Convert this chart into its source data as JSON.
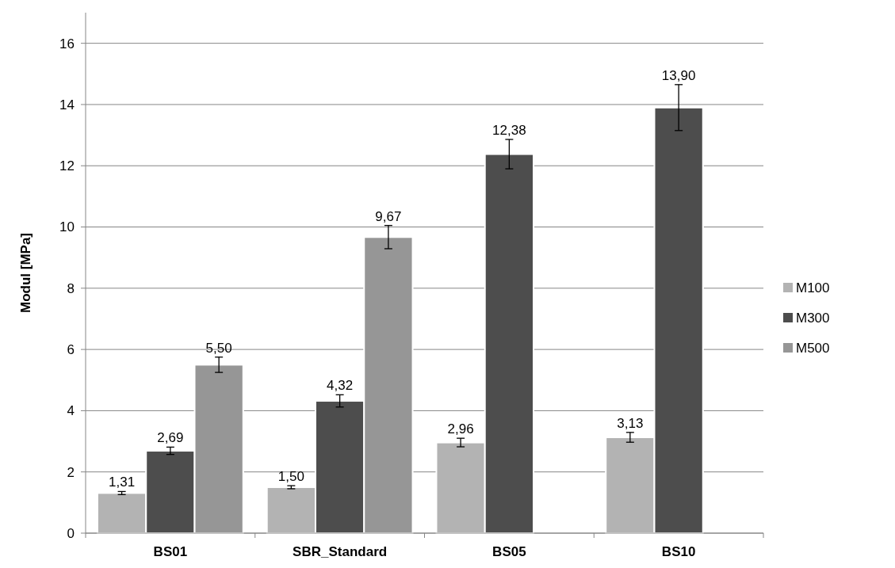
{
  "chart_data": {
    "type": "bar",
    "ylabel": "Modul [MPa]",
    "categories": [
      "BS01",
      "SBR_Standard",
      "BS05",
      "BS10"
    ],
    "series": [
      {
        "name": "M100",
        "color": "#b3b3b3",
        "values": [
          1.31,
          1.5,
          2.96,
          3.13
        ],
        "errors": [
          0.05,
          0.05,
          0.14,
          0.16
        ],
        "value_labels": [
          "1,31",
          "1,50",
          "2,96",
          "3,13"
        ]
      },
      {
        "name": "M300",
        "color": "#4d4d4d",
        "values": [
          2.69,
          4.32,
          12.38,
          13.9
        ],
        "errors": [
          0.12,
          0.2,
          0.48,
          0.75
        ],
        "value_labels": [
          "2,69",
          "4,32",
          "12,38",
          "13,90"
        ]
      },
      {
        "name": "M500",
        "color": "#969696",
        "values": [
          5.5,
          9.67,
          null,
          null
        ],
        "errors": [
          0.25,
          0.38,
          null,
          null
        ],
        "value_labels": [
          "5,50",
          "9,67",
          null,
          null
        ]
      }
    ],
    "ylim": [
      0,
      17
    ],
    "yticks": [
      0,
      2,
      4,
      6,
      8,
      10,
      12,
      14,
      16
    ],
    "grid": "y",
    "legend": "right"
  }
}
